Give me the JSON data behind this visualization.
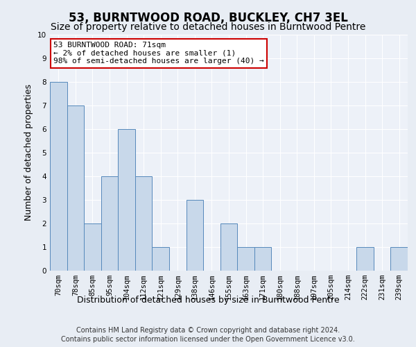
{
  "title": "53, BURNTWOOD ROAD, BUCKLEY, CH7 3EL",
  "subtitle": "Size of property relative to detached houses in Burntwood Pentre",
  "xlabel": "Distribution of detached houses by size in Burntwood Pentre",
  "ylabel": "Number of detached properties",
  "categories": [
    "70sqm",
    "78sqm",
    "85sqm",
    "95sqm",
    "104sqm",
    "112sqm",
    "121sqm",
    "129sqm",
    "138sqm",
    "146sqm",
    "155sqm",
    "163sqm",
    "171sqm",
    "180sqm",
    "188sqm",
    "197sqm",
    "205sqm",
    "214sqm",
    "222sqm",
    "231sqm",
    "239sqm"
  ],
  "values": [
    8,
    7,
    2,
    4,
    6,
    4,
    1,
    0,
    3,
    0,
    2,
    1,
    1,
    0,
    0,
    0,
    0,
    0,
    1,
    0,
    1
  ],
  "bar_color": "#c8d8ea",
  "bar_edge_color": "#5588bb",
  "annotation_title": "53 BURNTWOOD ROAD: 71sqm",
  "annotation_line1": "← 2% of detached houses are smaller (1)",
  "annotation_line2": "98% of semi-detached houses are larger (40) →",
  "annotation_box_color": "#ffffff",
  "annotation_box_edge": "#cc0000",
  "ylim": [
    0,
    10
  ],
  "yticks": [
    0,
    1,
    2,
    3,
    4,
    5,
    6,
    7,
    8,
    9,
    10
  ],
  "footer1": "Contains HM Land Registry data © Crown copyright and database right 2024.",
  "footer2": "Contains public sector information licensed under the Open Government Licence v3.0.",
  "bg_color": "#e8edf4",
  "plot_bg_color": "#edf1f8",
  "title_fontsize": 12,
  "subtitle_fontsize": 10,
  "axis_label_fontsize": 9,
  "tick_fontsize": 7.5,
  "annotation_fontsize": 8,
  "footer_fontsize": 7
}
